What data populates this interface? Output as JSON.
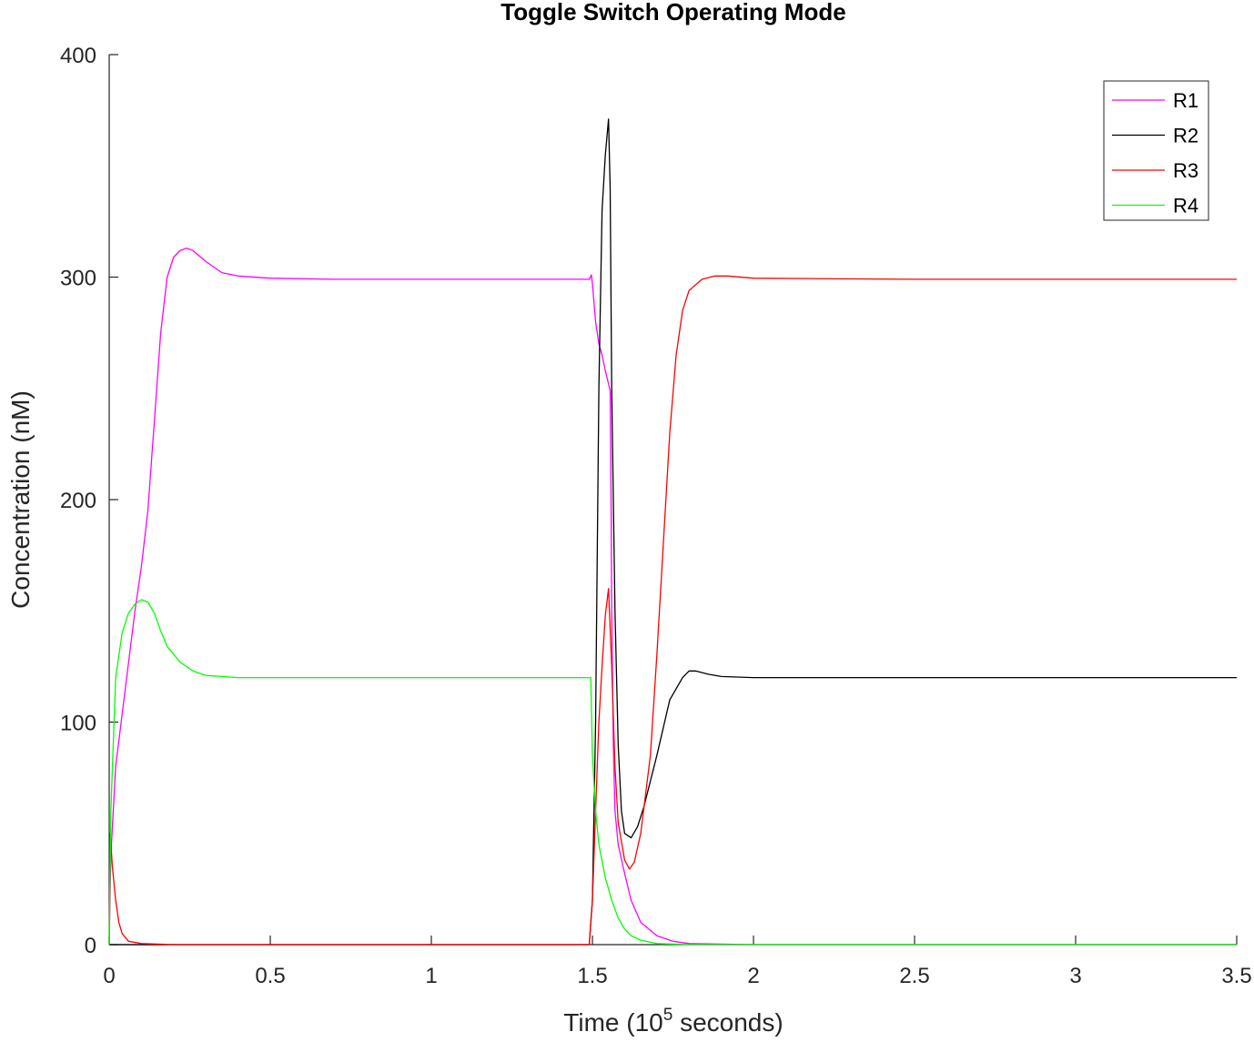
{
  "chart_data": {
    "type": "line",
    "title": "Toggle Switch Operating Mode",
    "xlabel": "Time (10",
    "xlabel_sup": "5",
    "xlabel_suffix": " seconds)",
    "ylabel": "Concentration (nM)",
    "xlim": [
      0,
      3.5
    ],
    "ylim": [
      0,
      400
    ],
    "xticks": [
      0,
      0.5,
      1,
      1.5,
      2,
      2.5,
      3,
      3.5
    ],
    "xtick_labels": [
      "0",
      "0.5",
      "1",
      "1.5",
      "2",
      "2.5",
      "3",
      "3.5"
    ],
    "yticks": [
      0,
      100,
      200,
      300,
      400
    ],
    "ytick_labels": [
      "0",
      "100",
      "200",
      "300",
      "400"
    ],
    "grid": false,
    "legend_position": "top-right",
    "series": [
      {
        "name": "R1",
        "color": "#ff00ff",
        "points": [
          [
            0,
            0
          ],
          [
            0.005,
            40
          ],
          [
            0.02,
            80
          ],
          [
            0.05,
            115
          ],
          [
            0.08,
            150
          ],
          [
            0.1,
            170
          ],
          [
            0.12,
            195
          ],
          [
            0.14,
            235
          ],
          [
            0.16,
            275
          ],
          [
            0.18,
            300
          ],
          [
            0.2,
            309
          ],
          [
            0.22,
            312
          ],
          [
            0.24,
            313
          ],
          [
            0.26,
            312
          ],
          [
            0.3,
            307
          ],
          [
            0.35,
            302
          ],
          [
            0.4,
            300.5
          ],
          [
            0.5,
            299.5
          ],
          [
            0.7,
            299
          ],
          [
            1.0,
            299
          ],
          [
            1.3,
            299
          ],
          [
            1.49,
            299
          ],
          [
            1.497,
            301
          ],
          [
            1.5,
            297
          ],
          [
            1.51,
            280
          ],
          [
            1.52,
            270
          ],
          [
            1.53,
            265
          ],
          [
            1.54,
            258
          ],
          [
            1.55,
            252
          ],
          [
            1.555,
            249
          ],
          [
            1.558,
            200
          ],
          [
            1.56,
            150
          ],
          [
            1.565,
            90
          ],
          [
            1.57,
            60
          ],
          [
            1.58,
            45
          ],
          [
            1.6,
            32
          ],
          [
            1.62,
            20
          ],
          [
            1.65,
            10
          ],
          [
            1.7,
            4
          ],
          [
            1.75,
            1.5
          ],
          [
            1.8,
            0.5
          ],
          [
            2.0,
            0
          ],
          [
            2.5,
            0
          ],
          [
            3.0,
            0
          ],
          [
            3.5,
            0
          ]
        ]
      },
      {
        "name": "R2",
        "color": "#000000",
        "points": [
          [
            0,
            0
          ],
          [
            0.5,
            0
          ],
          [
            1.0,
            0
          ],
          [
            1.49,
            0
          ],
          [
            1.5,
            20
          ],
          [
            1.51,
            100
          ],
          [
            1.52,
            250
          ],
          [
            1.53,
            330
          ],
          [
            1.54,
            355
          ],
          [
            1.55,
            371
          ],
          [
            1.555,
            340
          ],
          [
            1.56,
            250
          ],
          [
            1.57,
            150
          ],
          [
            1.58,
            90
          ],
          [
            1.59,
            60
          ],
          [
            1.6,
            50
          ],
          [
            1.62,
            48
          ],
          [
            1.64,
            53
          ],
          [
            1.66,
            62
          ],
          [
            1.7,
            85
          ],
          [
            1.74,
            110
          ],
          [
            1.78,
            120
          ],
          [
            1.8,
            123
          ],
          [
            1.82,
            123
          ],
          [
            1.86,
            121.5
          ],
          [
            1.9,
            120.5
          ],
          [
            2.0,
            120
          ],
          [
            2.5,
            120
          ],
          [
            3.0,
            120
          ],
          [
            3.5,
            120
          ]
        ]
      },
      {
        "name": "R3",
        "color": "#ff0000",
        "points": [
          [
            0,
            0
          ],
          [
            0.003,
            50
          ],
          [
            0.01,
            35
          ],
          [
            0.02,
            20
          ],
          [
            0.03,
            10
          ],
          [
            0.04,
            5
          ],
          [
            0.06,
            1.5
          ],
          [
            0.1,
            0.5
          ],
          [
            0.2,
            0
          ],
          [
            1.0,
            0
          ],
          [
            1.49,
            0
          ],
          [
            1.5,
            20
          ],
          [
            1.51,
            60
          ],
          [
            1.52,
            100
          ],
          [
            1.53,
            125
          ],
          [
            1.54,
            148
          ],
          [
            1.55,
            160
          ],
          [
            1.56,
            125
          ],
          [
            1.57,
            80
          ],
          [
            1.58,
            55
          ],
          [
            1.6,
            38
          ],
          [
            1.615,
            34
          ],
          [
            1.63,
            37
          ],
          [
            1.65,
            50
          ],
          [
            1.68,
            85
          ],
          [
            1.7,
            130
          ],
          [
            1.72,
            180
          ],
          [
            1.74,
            230
          ],
          [
            1.76,
            265
          ],
          [
            1.78,
            285
          ],
          [
            1.8,
            294
          ],
          [
            1.84,
            299
          ],
          [
            1.88,
            300.5
          ],
          [
            1.92,
            300.5
          ],
          [
            2.0,
            299.5
          ],
          [
            2.5,
            299
          ],
          [
            3.0,
            299
          ],
          [
            3.5,
            299
          ]
        ]
      },
      {
        "name": "R4",
        "color": "#00ff00",
        "points": [
          [
            0,
            0
          ],
          [
            0.005,
            60
          ],
          [
            0.02,
            120
          ],
          [
            0.04,
            140
          ],
          [
            0.06,
            149
          ],
          [
            0.08,
            153
          ],
          [
            0.1,
            155
          ],
          [
            0.12,
            154
          ],
          [
            0.14,
            149
          ],
          [
            0.16,
            141
          ],
          [
            0.18,
            134
          ],
          [
            0.22,
            127
          ],
          [
            0.26,
            123
          ],
          [
            0.3,
            121
          ],
          [
            0.4,
            120
          ],
          [
            0.6,
            120
          ],
          [
            1.0,
            120
          ],
          [
            1.3,
            120
          ],
          [
            1.49,
            120
          ],
          [
            1.495,
            120
          ],
          [
            1.5,
            85
          ],
          [
            1.51,
            60
          ],
          [
            1.52,
            45
          ],
          [
            1.54,
            30
          ],
          [
            1.56,
            20
          ],
          [
            1.58,
            12
          ],
          [
            1.6,
            7
          ],
          [
            1.62,
            4
          ],
          [
            1.65,
            2
          ],
          [
            1.7,
            0.5
          ],
          [
            1.8,
            0
          ],
          [
            2.5,
            0
          ],
          [
            3.5,
            0
          ]
        ]
      }
    ]
  }
}
